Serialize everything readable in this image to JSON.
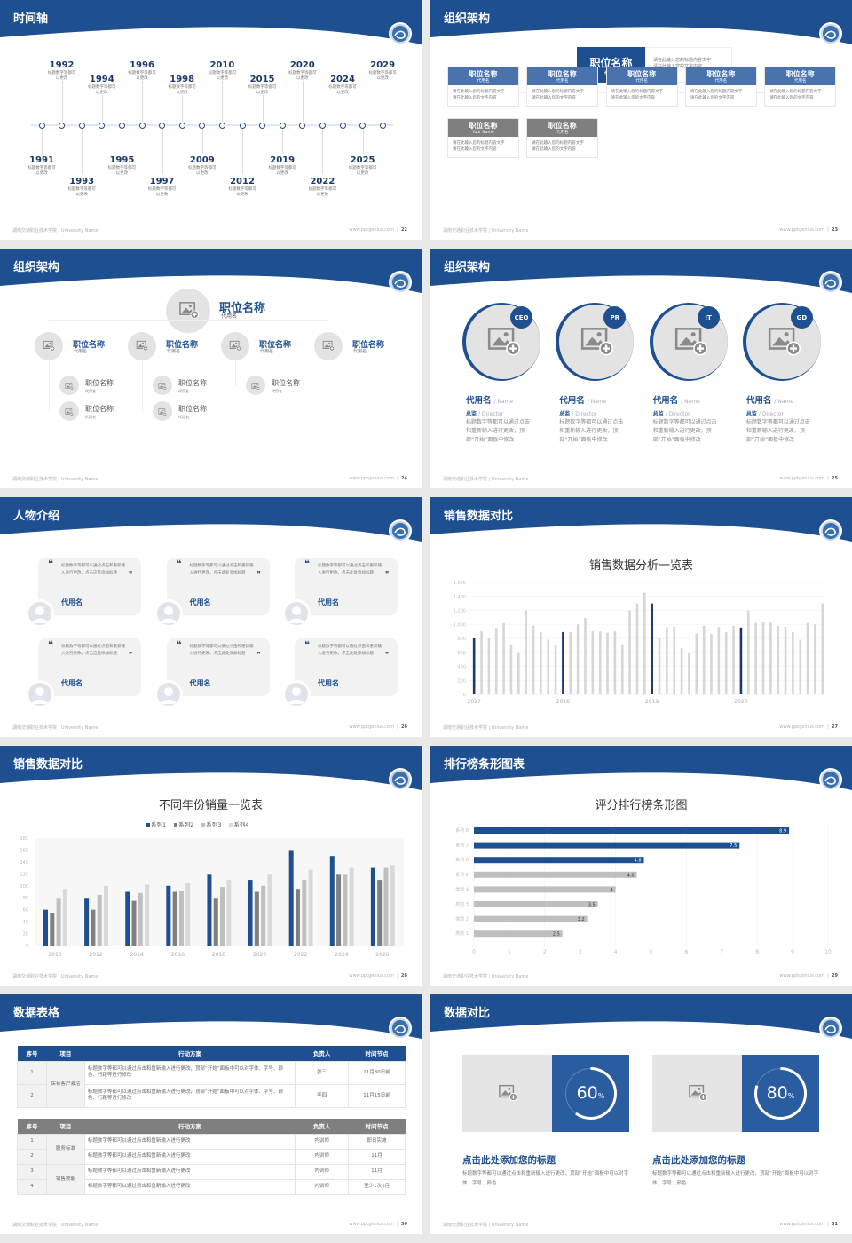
{
  "colors": {
    "primary": "#1d4f91",
    "primary_light": "#4a73ad",
    "gray": "#7f7f7f",
    "bar_gray": "#bfbfbf",
    "bar_light": "#d9d9d9",
    "placeholder": "#e4e3e3"
  },
  "footer": {
    "school": "湖南交通职业技术学院 | University Name",
    "site": "www.pptgenius.com"
  },
  "timeline": {
    "title": "时间轴",
    "page": "22",
    "item_text": "标题数字等都可以更改",
    "years": [
      "1991",
      "1992",
      "1993",
      "1994",
      "1995",
      "1996",
      "1997",
      "1998",
      "2009",
      "2010",
      "2012",
      "2015",
      "2019",
      "2020",
      "2022",
      "2024",
      "2025",
      "2029"
    ]
  },
  "org1": {
    "title": "组织架构",
    "page": "23",
    "top": {
      "title": "职位名称",
      "sub": "代用名",
      "desc1": "请在此输入您的标题内容文字",
      "desc2": "请在此输入您的文字内容"
    },
    "row1": [
      {
        "title": "职位名称",
        "sub": "代用名"
      },
      {
        "title": "职位名称",
        "sub": "代用名"
      },
      {
        "title": "职位名称",
        "sub": "代用名"
      },
      {
        "title": "职位名称",
        "sub": "代用名"
      },
      {
        "title": "职位名称",
        "sub": "代用名"
      }
    ],
    "row2": [
      {
        "title": "职位名称",
        "sub": "Your Name"
      },
      {
        "title": "职位名称",
        "sub": "代用名"
      }
    ],
    "desc1": "请在此输入您的标题内容文字",
    "desc2": "请在此输入您的文字内容"
  },
  "org2": {
    "title": "组织架构",
    "page": "24",
    "top": {
      "title": "职位名称",
      "sub": "代用名"
    },
    "branches": [
      {
        "title": "职位名称",
        "sub": "代用名",
        "children": [
          {
            "title": "职位名称",
            "sub": "代用名"
          },
          {
            "title": "职位名称",
            "sub": "代用名"
          }
        ]
      },
      {
        "title": "职位名称",
        "sub": "代用名",
        "children": [
          {
            "title": "职位名称",
            "sub": "代用名"
          },
          {
            "title": "职位名称",
            "sub": "代用名"
          }
        ]
      },
      {
        "title": "职位名称",
        "sub": "代用名",
        "children": [
          {
            "title": "职位名称",
            "sub": "代用名"
          }
        ]
      },
      {
        "title": "职位名称",
        "sub": "代用名",
        "children": []
      }
    ]
  },
  "team": {
    "title": "组织架构",
    "page": "25",
    "members": [
      {
        "badge": "CEO",
        "name": "代用名",
        "name_en": "/ Name",
        "role": "总监",
        "role_en": "/ Director",
        "desc": "标题数字等都可以通过点击和重新输入进行更改，顶部“开始”面板中修改"
      },
      {
        "badge": "PR",
        "name": "代用名",
        "name_en": "/ Name",
        "role": "总监",
        "role_en": "/ Director",
        "desc": "标题数字等都可以通过点击和重新输入进行更改，顶部“开始”面板中修改"
      },
      {
        "badge": "IT",
        "name": "代用名",
        "name_en": "/ Name",
        "role": "总监",
        "role_en": "/ Director",
        "desc": "标题数字等都可以通过点击和重新输入进行更改，顶部“开始”面板中修改"
      },
      {
        "badge": "GD",
        "name": "代用名",
        "name_en": "/ Name",
        "role": "总监",
        "role_en": "/ Director",
        "desc": "标题数字等都可以通过点击和重新输入进行更改，顶部“开始”面板中修改"
      }
    ]
  },
  "testimonials": {
    "title": "人物介绍",
    "page": "26",
    "cards": [
      {
        "quote": "标题数字等都可以通过点击和重新输入进行更改，点击这些添加标题",
        "name": "代用名"
      },
      {
        "quote": "标题数字等都可以通过点击和重新输入进行更改，点击此处添加标题",
        "name": "代用名"
      },
      {
        "quote": "标题数字等都可以通过点击和重新输入进行更改，点击此处添加标题",
        "name": "代用名"
      },
      {
        "quote": "标题数字等都可以通过点击和重新输入进行更改，点击这些添加标题",
        "name": "代用名"
      },
      {
        "quote": "标题数字等都可以通过点击和重新输入进行更改，点击此处添加标题",
        "name": "代用名"
      },
      {
        "quote": "标题数字等都可以通过点击和重新输入进行更改，点击此处添加标题",
        "name": "代用名"
      }
    ]
  },
  "sales_monthly": {
    "title": "销售数据对比",
    "page": "27"
  },
  "sales_yearly": {
    "title": "销售数据对比",
    "page": "28"
  },
  "ranking": {
    "title": "排行榜条形图表",
    "page": "29"
  },
  "tables": {
    "title": "数据表格",
    "page": "30",
    "headers": [
      "序号",
      "项目",
      "行动方案",
      "负责人",
      "时间节点"
    ],
    "table1": {
      "rows": [
        {
          "no": "1",
          "plan": "标题数字等都可以通过点击和重新输入进行更改，顶部“开始”面板中可以对字体、字号、颜色、行距等进行修改",
          "owner": "张三",
          "time": "11月30日前"
        },
        {
          "no": "2",
          "plan": "标题数字等都可以通过点击和重新输入进行更改，顶部“开始”面板中可以对字体、字号、颜色、行距等进行修改",
          "owner": "李四",
          "time": "11月15日前"
        }
      ],
      "groups": [
        "保有客户激活"
      ]
    },
    "table2": {
      "rows": [
        {
          "no": "1",
          "plan": "标题数字等都可以通过点击和重新输入进行更改",
          "owner": "内训师",
          "time": "即日实施"
        },
        {
          "no": "2",
          "plan": "标题数字等都可以通过点击和重新输入进行更改",
          "owner": "内训师",
          "time": "11月"
        },
        {
          "no": "3",
          "plan": "标题数字等都可以通过点击和重新输入进行更改",
          "owner": "内训师",
          "time": "11月"
        },
        {
          "no": "4",
          "plan": "标题数字等都可以通过点击和重新输入进行更改",
          "owner": "内训师",
          "time": "至少1次 /月"
        }
      ],
      "groups": [
        "服务标准",
        "销售技能"
      ]
    }
  },
  "compare": {
    "title": "数据对比",
    "page": "31",
    "cards": [
      {
        "percent": 60,
        "value": "60",
        "unit": "%",
        "title": "点击此处添加您的标题",
        "desc": "标题数字等都可以通过点击和重新输入进行更改，顶部“开始”面板中可以对字体、字号、颜色"
      },
      {
        "percent": 80,
        "value": "80",
        "unit": "%",
        "title": "点击此处添加您的标题",
        "desc": "标题数字等都可以通过点击和重新输入进行更改，顶部“开始”面板中可以对字体、字号、颜色"
      }
    ]
  },
  "chart_data": [
    {
      "type": "bar",
      "title": "销售数据分析一览表",
      "ylim": [
        0,
        1600
      ],
      "yticks": [
        "0",
        "200",
        "400",
        "600",
        "800",
        "1,000",
        "1,200",
        "1,400",
        "1,600"
      ],
      "x_labels": [
        "2017",
        "2018",
        "2019",
        "2020"
      ],
      "highlight_every": 12,
      "values": [
        800,
        900,
        800,
        950,
        1020,
        700,
        600,
        1200,
        980,
        890,
        780,
        700,
        890,
        890,
        1000,
        1090,
        900,
        900,
        880,
        900,
        700,
        1200,
        1300,
        1450,
        1300,
        800,
        960,
        970,
        660,
        590,
        870,
        980,
        860,
        960,
        890,
        980,
        955,
        1200,
        1020,
        1030,
        1025,
        980,
        965,
        890,
        780,
        1020,
        1000,
        1300
      ],
      "grid": true
    },
    {
      "type": "bar",
      "title": "不同年份销量一览表",
      "ylim": [
        0,
        180
      ],
      "yticks": [
        "0",
        "20",
        "40",
        "60",
        "80",
        "100",
        "120",
        "140",
        "160",
        "180"
      ],
      "categories": [
        "2010",
        "2012",
        "2014",
        "2016",
        "2018",
        "2020",
        "2022",
        "2024",
        "2026"
      ],
      "legend": "top",
      "series": [
        {
          "name": "系列1",
          "color": "#1d4f91",
          "values": [
            60,
            80,
            90,
            100,
            120,
            110,
            160,
            150,
            130
          ]
        },
        {
          "name": "系列2",
          "color": "#7f7f7f",
          "values": [
            55,
            60,
            75,
            90,
            80,
            90,
            95,
            120,
            110
          ]
        },
        {
          "name": "系列3",
          "color": "#bfbfbf",
          "values": [
            80,
            85,
            88,
            92,
            98,
            100,
            110,
            120,
            130
          ]
        },
        {
          "name": "系列4",
          "color": "#d9d9d9",
          "values": [
            95,
            100,
            102,
            105,
            110,
            120,
            127,
            130,
            135
          ]
        }
      ]
    },
    {
      "type": "bar",
      "orientation": "horizontal",
      "title": "评分排行榜条形图",
      "xlim": [
        0,
        10
      ],
      "xticks": [
        "0",
        "1",
        "2",
        "3",
        "4",
        "5",
        "6",
        "7",
        "8",
        "9",
        "10"
      ],
      "categories": [
        "系列 8",
        "系列 7",
        "系列 6",
        "系列 5",
        "类别 4",
        "类别 3",
        "类别 2",
        "类别 1"
      ],
      "values": [
        8.9,
        7.5,
        4.8,
        4.6,
        4,
        3.5,
        3.2,
        2.5
      ],
      "labels": [
        "8.9",
        "7.5",
        "4.8",
        "4.6",
        "4",
        "3.5",
        "3.2",
        "2.5"
      ],
      "highlighted": 3,
      "grid": true
    }
  ]
}
